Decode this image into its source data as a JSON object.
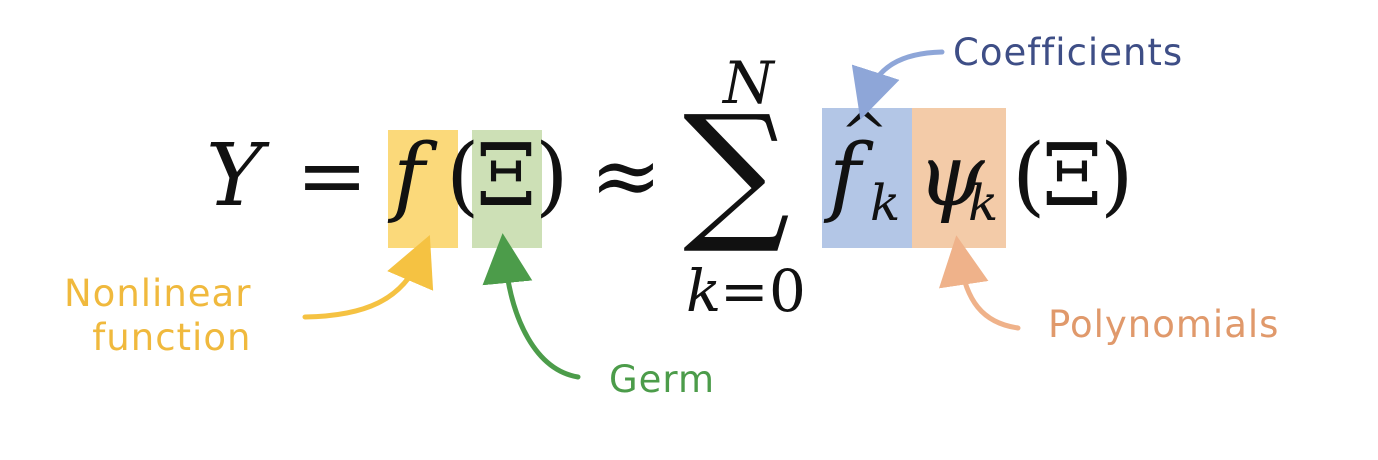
{
  "equation": {
    "lhs": "Y",
    "equals": "=",
    "func": "f",
    "open_paren": "(",
    "germ_symbol": "Ξ",
    "close_paren": ")",
    "approx": "≈",
    "sum_symbol": "∑",
    "sum_upper": "N",
    "sum_lower_var": "k",
    "sum_lower_eq": "=",
    "sum_lower_val": "0",
    "coef_base": "f",
    "coef_hat": "^",
    "coef_sub": "k",
    "poly_base": "ψ",
    "poly_sub": "k",
    "poly_open": "(",
    "poly_arg": "Ξ",
    "poly_close": ")"
  },
  "labels": {
    "nonlinear": "Nonlinear\nfunction",
    "germ": "Germ",
    "coefficients": "Coefficients",
    "polynomials": "Polynomials"
  },
  "colors": {
    "nonlinear": "#f0b93d",
    "nonlinear_highlight": "#fbd97a",
    "germ": "#4c9c4a",
    "germ_highlight": "#cde0b6",
    "coefficients_text": "#3e4e86",
    "coefficients_arrow": "#8ea6d8",
    "coefficients_highlight": "#b3c6e6",
    "polynomials": "#e0996b",
    "polynomials_arrow": "#efb28a",
    "polynomials_highlight": "#f3cba8",
    "math_text": "#111111"
  }
}
